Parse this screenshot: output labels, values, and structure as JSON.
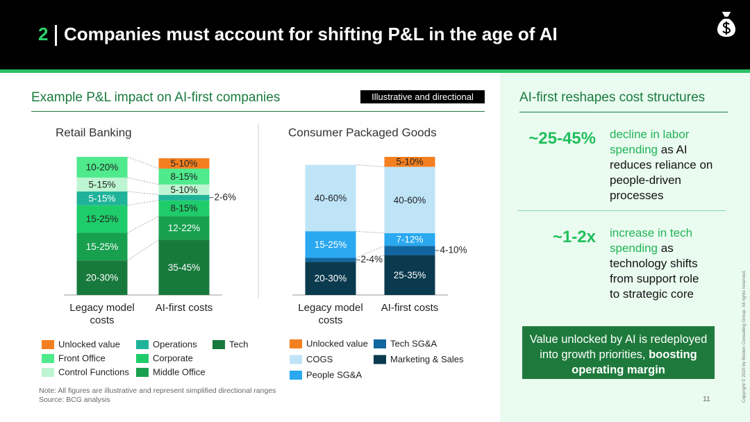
{
  "header": {
    "number": "2",
    "title": "Companies must account for shifting P&L in the age of AI"
  },
  "left": {
    "title": "Example P&L impact on AI-first companies",
    "tag": "Illustrative and directional"
  },
  "chart_data": [
    {
      "type": "bar",
      "stacked": true,
      "title": "Retail Banking",
      "categories": [
        "Legacy model costs",
        "AI-first costs"
      ],
      "series": [
        {
          "name": "Tech",
          "color": "#177a3c",
          "values": [
            25,
            40
          ],
          "value_labels": [
            "20-30%",
            "35-45%"
          ]
        },
        {
          "name": "Middle Office",
          "color": "#18a04f",
          "values": [
            20,
            17
          ],
          "value_labels": [
            "15-25%",
            "12-22%"
          ]
        },
        {
          "name": "Corporate",
          "color": "#1fcc6a",
          "values": [
            20,
            11.5
          ],
          "value_labels": [
            "15-25%",
            "8-15%"
          ]
        },
        {
          "name": "Operations",
          "color": "#1fb39a",
          "values": [
            10,
            4
          ],
          "value_labels": [
            "5-15%",
            "2-6%"
          ]
        },
        {
          "name": "Control Functions",
          "color": "#bdf5d2",
          "values": [
            10,
            7.5
          ],
          "value_labels": [
            "5-15%",
            "5-10%"
          ]
        },
        {
          "name": "Front Office",
          "color": "#4eea8c",
          "values": [
            15,
            11.5
          ],
          "value_labels": [
            "10-20%",
            "8-15%"
          ]
        },
        {
          "name": "Unlocked value",
          "color": "#f47f20",
          "values": [
            null,
            7.5
          ],
          "value_labels": [
            null,
            "5-10%"
          ]
        }
      ]
    },
    {
      "type": "bar",
      "stacked": true,
      "title": "Consumer Packaged Goods",
      "categories": [
        "Legacy model costs",
        "AI-first costs"
      ],
      "series": [
        {
          "name": "Marketing & Sales",
          "color": "#0b3a4e",
          "values": [
            25,
            30
          ],
          "value_labels": [
            "20-30%",
            "25-35%"
          ]
        },
        {
          "name": "Tech SG&A",
          "color": "#12669f",
          "values": [
            3,
            7
          ],
          "value_labels": [
            "2-4%",
            "4-10%"
          ]
        },
        {
          "name": "People SG&A",
          "color": "#2aa8f0",
          "values": [
            20,
            9.5
          ],
          "value_labels": [
            "15-25%",
            "7-12%"
          ]
        },
        {
          "name": "COGS",
          "color": "#bfe4f8",
          "values": [
            50,
            50
          ],
          "value_labels": [
            "40-60%",
            "40-60%"
          ]
        },
        {
          "name": "Unlocked value",
          "color": "#f47f20",
          "values": [
            null,
            7.5
          ],
          "value_labels": [
            null,
            "5-10%"
          ]
        }
      ]
    }
  ],
  "note": "Note: All figures are illustrative and represent simplified directional ranges",
  "source": "Source: BCG analysis",
  "right": {
    "title": "AI-first reshapes cost structures",
    "stats": [
      {
        "value": "~25-45%",
        "highlight": "decline in labor spending",
        "text": "as AI reduces reliance on people-driven processes"
      },
      {
        "value": "~1-2x",
        "highlight": "increase in tech spending",
        "text": "as technology shifts from support role to strategic core"
      }
    ],
    "callout": {
      "text": "Value unlocked by AI is redeployed into growth priorities,",
      "bold": "boosting operating margin"
    }
  },
  "page_number": "11",
  "copyright": "Copyright © 2025 by Boston Consulting Group. All rights reserved."
}
